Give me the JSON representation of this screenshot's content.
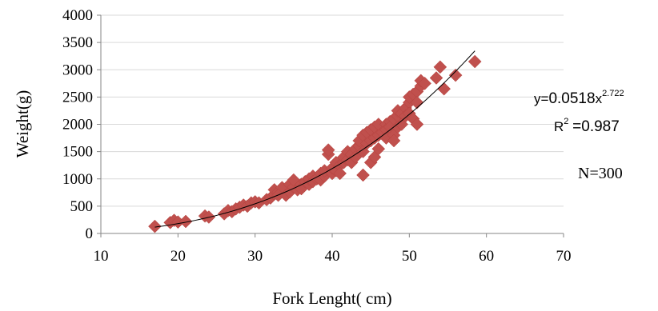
{
  "chart_data": {
    "type": "scatter",
    "xlabel": "Fork Lenght( cm)",
    "ylabel": "Weight(g)",
    "xlim": [
      10,
      70
    ],
    "ylim": [
      0,
      4000
    ],
    "xticks": [
      10,
      20,
      30,
      40,
      50,
      60,
      70
    ],
    "yticks": [
      0,
      500,
      1000,
      1500,
      2000,
      2500,
      3000,
      3500,
      4000
    ],
    "grid": "horizontal",
    "marker": "diamond",
    "marker_color": "#c0504d",
    "trendline": {
      "type": "power",
      "a": 0.0518,
      "b": 2.722,
      "x_range": [
        17,
        58.5
      ],
      "color": "#000000"
    },
    "annotations": {
      "eq_prefix": "y=",
      "eq_coef": "0.0518",
      "eq_x": "x",
      "eq_exp": "2.722",
      "r2_label": "R",
      "r2_sup": "2",
      "r2_eq": "=",
      "r2_value": "0.987",
      "n_label": "N=300"
    },
    "points": [
      [
        17,
        130
      ],
      [
        19,
        200
      ],
      [
        19.5,
        240
      ],
      [
        20,
        210
      ],
      [
        21,
        220
      ],
      [
        23.5,
        320
      ],
      [
        24,
        300
      ],
      [
        26,
        360
      ],
      [
        26.5,
        420
      ],
      [
        27,
        400
      ],
      [
        27.5,
        450
      ],
      [
        28,
        480
      ],
      [
        28.5,
        520
      ],
      [
        29,
        500
      ],
      [
        29.5,
        560
      ],
      [
        30,
        580
      ],
      [
        30.5,
        560
      ],
      [
        31.5,
        620
      ],
      [
        32,
        650
      ],
      [
        32.5,
        720
      ],
      [
        32.5,
        800
      ],
      [
        33,
        760
      ],
      [
        33.5,
        840
      ],
      [
        33,
        700
      ],
      [
        34,
        700
      ],
      [
        34.5,
        760
      ],
      [
        34.5,
        900
      ],
      [
        35,
        850
      ],
      [
        35,
        980
      ],
      [
        35.5,
        800
      ],
      [
        36,
        900
      ],
      [
        36,
        820
      ],
      [
        36.5,
        950
      ],
      [
        37,
        900
      ],
      [
        37,
        1000
      ],
      [
        37.5,
        1050
      ],
      [
        37.5,
        950
      ],
      [
        38,
        1000
      ],
      [
        38.5,
        1100
      ],
      [
        38.5,
        980
      ],
      [
        39,
        1050
      ],
      [
        39,
        1150
      ],
      [
        39.5,
        1450
      ],
      [
        39.5,
        1530
      ],
      [
        40,
        1100
      ],
      [
        40,
        1200
      ],
      [
        40.5,
        1150
      ],
      [
        40.5,
        1300
      ],
      [
        41,
        1250
      ],
      [
        41,
        1100
      ],
      [
        41.5,
        1300
      ],
      [
        41.5,
        1400
      ],
      [
        42,
        1350
      ],
      [
        42,
        1500
      ],
      [
        42.5,
        1450
      ],
      [
        42.5,
        1300
      ],
      [
        43,
        1550
      ],
      [
        43,
        1400
      ],
      [
        43.5,
        1600
      ],
      [
        43.5,
        1700
      ],
      [
        44,
        1500
      ],
      [
        44,
        1800
      ],
      [
        44,
        1070
      ],
      [
        44.5,
        1650
      ],
      [
        44.5,
        1850
      ],
      [
        45,
        1700
      ],
      [
        45,
        1900
      ],
      [
        45,
        1300
      ],
      [
        45.5,
        1750
      ],
      [
        45.5,
        1950
      ],
      [
        45.5,
        1400
      ],
      [
        46,
        1800
      ],
      [
        46,
        2000
      ],
      [
        46,
        1550
      ],
      [
        46.5,
        1850
      ],
      [
        47,
        2000
      ],
      [
        47,
        1900
      ],
      [
        47,
        1750
      ],
      [
        47.5,
        2050
      ],
      [
        47.5,
        1950
      ],
      [
        48,
        2100
      ],
      [
        48,
        1800
      ],
      [
        48,
        1700
      ],
      [
        48.5,
        2150
      ],
      [
        48.5,
        2250
      ],
      [
        48.5,
        1950
      ],
      [
        49,
        2200
      ],
      [
        49,
        2000
      ],
      [
        49.5,
        2300
      ],
      [
        49.5,
        2150
      ],
      [
        50,
        2400
      ],
      [
        50,
        2200
      ],
      [
        50,
        2500
      ],
      [
        50.5,
        2550
      ],
      [
        50.5,
        2100
      ],
      [
        51,
        2600
      ],
      [
        51,
        2400
      ],
      [
        51,
        2000
      ],
      [
        51.5,
        2700
      ],
      [
        51.5,
        2800
      ],
      [
        52,
        2750
      ],
      [
        53.5,
        2850
      ],
      [
        54,
        3050
      ],
      [
        54.5,
        2650
      ],
      [
        56,
        2900
      ],
      [
        58.5,
        3150
      ]
    ]
  }
}
